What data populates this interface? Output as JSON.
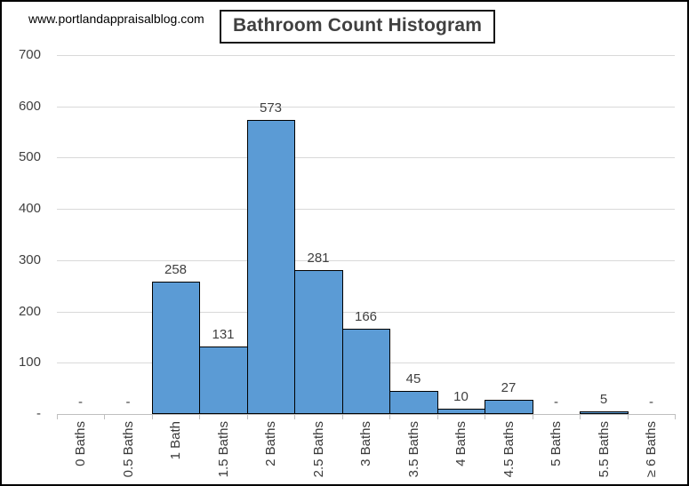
{
  "watermark": "www.portlandappraisalblog.com",
  "title": "Bathroom Count Histogram",
  "chart_data": {
    "type": "bar",
    "title": "Bathroom Count Histogram",
    "categories": [
      "0 Baths",
      "0.5 Baths",
      "1 Bath",
      "1.5 Baths",
      "2 Baths",
      "2.5 Baths",
      "3 Baths",
      "3.5 Baths",
      "4 Baths",
      "4.5 Baths",
      "5 Baths",
      "5.5 Baths",
      "≥ 6 Baths"
    ],
    "values": [
      0,
      0,
      258,
      131,
      573,
      281,
      166,
      45,
      10,
      27,
      0,
      5,
      0
    ],
    "bar_labels": [
      "-",
      "-",
      "258",
      "131",
      "573",
      "281",
      "166",
      "45",
      "10",
      "27",
      "-",
      "5",
      "-"
    ],
    "xlabel": "",
    "ylabel": "",
    "ylim": [
      0,
      700
    ],
    "y_ticks": [
      0,
      100,
      200,
      300,
      400,
      500,
      600,
      700
    ],
    "y_tick_labels": [
      "-",
      "100",
      "200",
      "300",
      "400",
      "500",
      "600",
      "700"
    ],
    "grid": true,
    "legend": false,
    "bar_gap": 0
  },
  "colors": {
    "bar_fill": "#5B9BD5",
    "bar_border": "#000000",
    "gridline": "#D9D9D9",
    "axis_line": "#BFBFBF",
    "label_text": "#404040",
    "title_text": "#404040",
    "title_border": "#161616",
    "watermark_text": "#000000",
    "background": "#FFFFFF"
  }
}
